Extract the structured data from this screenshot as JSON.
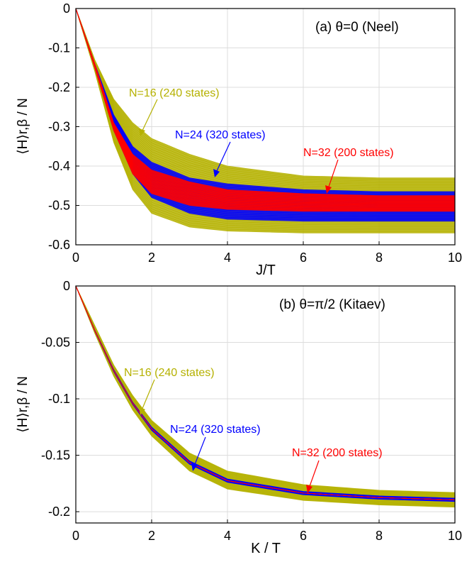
{
  "figure": {
    "panels": [
      {
        "id": "a",
        "title": "(a) θ=0 (Neel)",
        "ylabel": "⟨H⟩r,β / N",
        "xlabel": "J/T",
        "xticks": [
          "0",
          "2",
          "4",
          "6",
          "8",
          "10"
        ],
        "yticks": [
          "0",
          "-0.1",
          "-0.2",
          "-0.3",
          "-0.4",
          "-0.5",
          "-0.6"
        ],
        "annotations": [
          {
            "text": "N=16 (240 states)",
            "color": "#b5b100"
          },
          {
            "text": "N=24 (320 states)",
            "color": "#0000ff"
          },
          {
            "text": "N=32 (200 states)",
            "color": "#ff0000"
          }
        ]
      },
      {
        "id": "b",
        "title": "(b) θ=π/2 (Kitaev)",
        "ylabel": "⟨H⟩r,β / N",
        "xlabel": "K / T",
        "xticks": [
          "0",
          "2",
          "4",
          "6",
          "8",
          "10"
        ],
        "yticks": [
          "0",
          "-0.05",
          "-0.1",
          "-0.15",
          "-0.2"
        ],
        "annotations": [
          {
            "text": "N=16 (240 states)",
            "color": "#b5b100"
          },
          {
            "text": "N=24 (320 states)",
            "color": "#0000ff"
          },
          {
            "text": "N=32 (200 states)",
            "color": "#ff0000"
          }
        ]
      }
    ]
  },
  "chart_data": [
    {
      "type": "line",
      "title": "(a) θ=0 (Neel)",
      "xlabel": "J/T",
      "ylabel": "⟨H⟩r,β / N",
      "xlim": [
        0,
        10
      ],
      "ylim": [
        -0.6,
        0
      ],
      "grid": true,
      "x": [
        0,
        0.5,
        1,
        1.5,
        2,
        3,
        4,
        6,
        8,
        10
      ],
      "series": [
        {
          "name": "N=16 (240 states)",
          "color": "#b5b100",
          "upper": [
            0,
            -0.13,
            -0.23,
            -0.29,
            -0.33,
            -0.37,
            -0.4,
            -0.425,
            -0.43,
            -0.43
          ],
          "lower": [
            0,
            -0.16,
            -0.34,
            -0.46,
            -0.52,
            -0.555,
            -0.565,
            -0.57,
            -0.57,
            -0.57
          ]
        },
        {
          "name": "N=24 (320 states)",
          "color": "#0000ff",
          "upper": [
            0,
            -0.14,
            -0.27,
            -0.35,
            -0.39,
            -0.43,
            -0.445,
            -0.46,
            -0.465,
            -0.465
          ],
          "lower": [
            0,
            -0.15,
            -0.31,
            -0.42,
            -0.48,
            -0.52,
            -0.535,
            -0.54,
            -0.54,
            -0.54
          ]
        },
        {
          "name": "N=32 (200 states)",
          "color": "#ff0000",
          "upper": [
            0,
            -0.14,
            -0.29,
            -0.37,
            -0.41,
            -0.44,
            -0.46,
            -0.47,
            -0.475,
            -0.475
          ],
          "lower": [
            0,
            -0.15,
            -0.31,
            -0.42,
            -0.47,
            -0.5,
            -0.51,
            -0.515,
            -0.515,
            -0.515
          ]
        }
      ]
    },
    {
      "type": "line",
      "title": "(b) θ=π/2 (Kitaev)",
      "xlabel": "K / T",
      "ylabel": "⟨H⟩r,β / N",
      "xlim": [
        0,
        10
      ],
      "ylim": [
        -0.21,
        0
      ],
      "grid": true,
      "x": [
        0,
        0.5,
        1,
        1.5,
        2,
        3,
        4,
        6,
        8,
        10
      ],
      "series": [
        {
          "name": "N=16 (240 states)",
          "color": "#b5b100",
          "upper": [
            0,
            -0.035,
            -0.07,
            -0.097,
            -0.119,
            -0.148,
            -0.164,
            -0.176,
            -0.181,
            -0.183
          ],
          "lower": [
            0,
            -0.042,
            -0.08,
            -0.11,
            -0.133,
            -0.164,
            -0.18,
            -0.19,
            -0.194,
            -0.196
          ]
        },
        {
          "name": "N=24 (320 states)",
          "color": "#0000ff",
          "upper": [
            0,
            -0.039,
            -0.074,
            -0.103,
            -0.125,
            -0.155,
            -0.171,
            -0.182,
            -0.186,
            -0.188
          ],
          "lower": [
            0,
            -0.04,
            -0.076,
            -0.105,
            -0.128,
            -0.158,
            -0.174,
            -0.185,
            -0.189,
            -0.191
          ]
        },
        {
          "name": "N=32 (200 states)",
          "color": "#ff0000",
          "upper": [
            0,
            -0.0395,
            -0.075,
            -0.104,
            -0.1265,
            -0.1565,
            -0.1725,
            -0.1835,
            -0.1875,
            -0.1895
          ],
          "lower": [
            0,
            -0.0395,
            -0.075,
            -0.104,
            -0.1265,
            -0.1565,
            -0.1725,
            -0.1835,
            -0.1875,
            -0.1895
          ]
        }
      ]
    }
  ]
}
